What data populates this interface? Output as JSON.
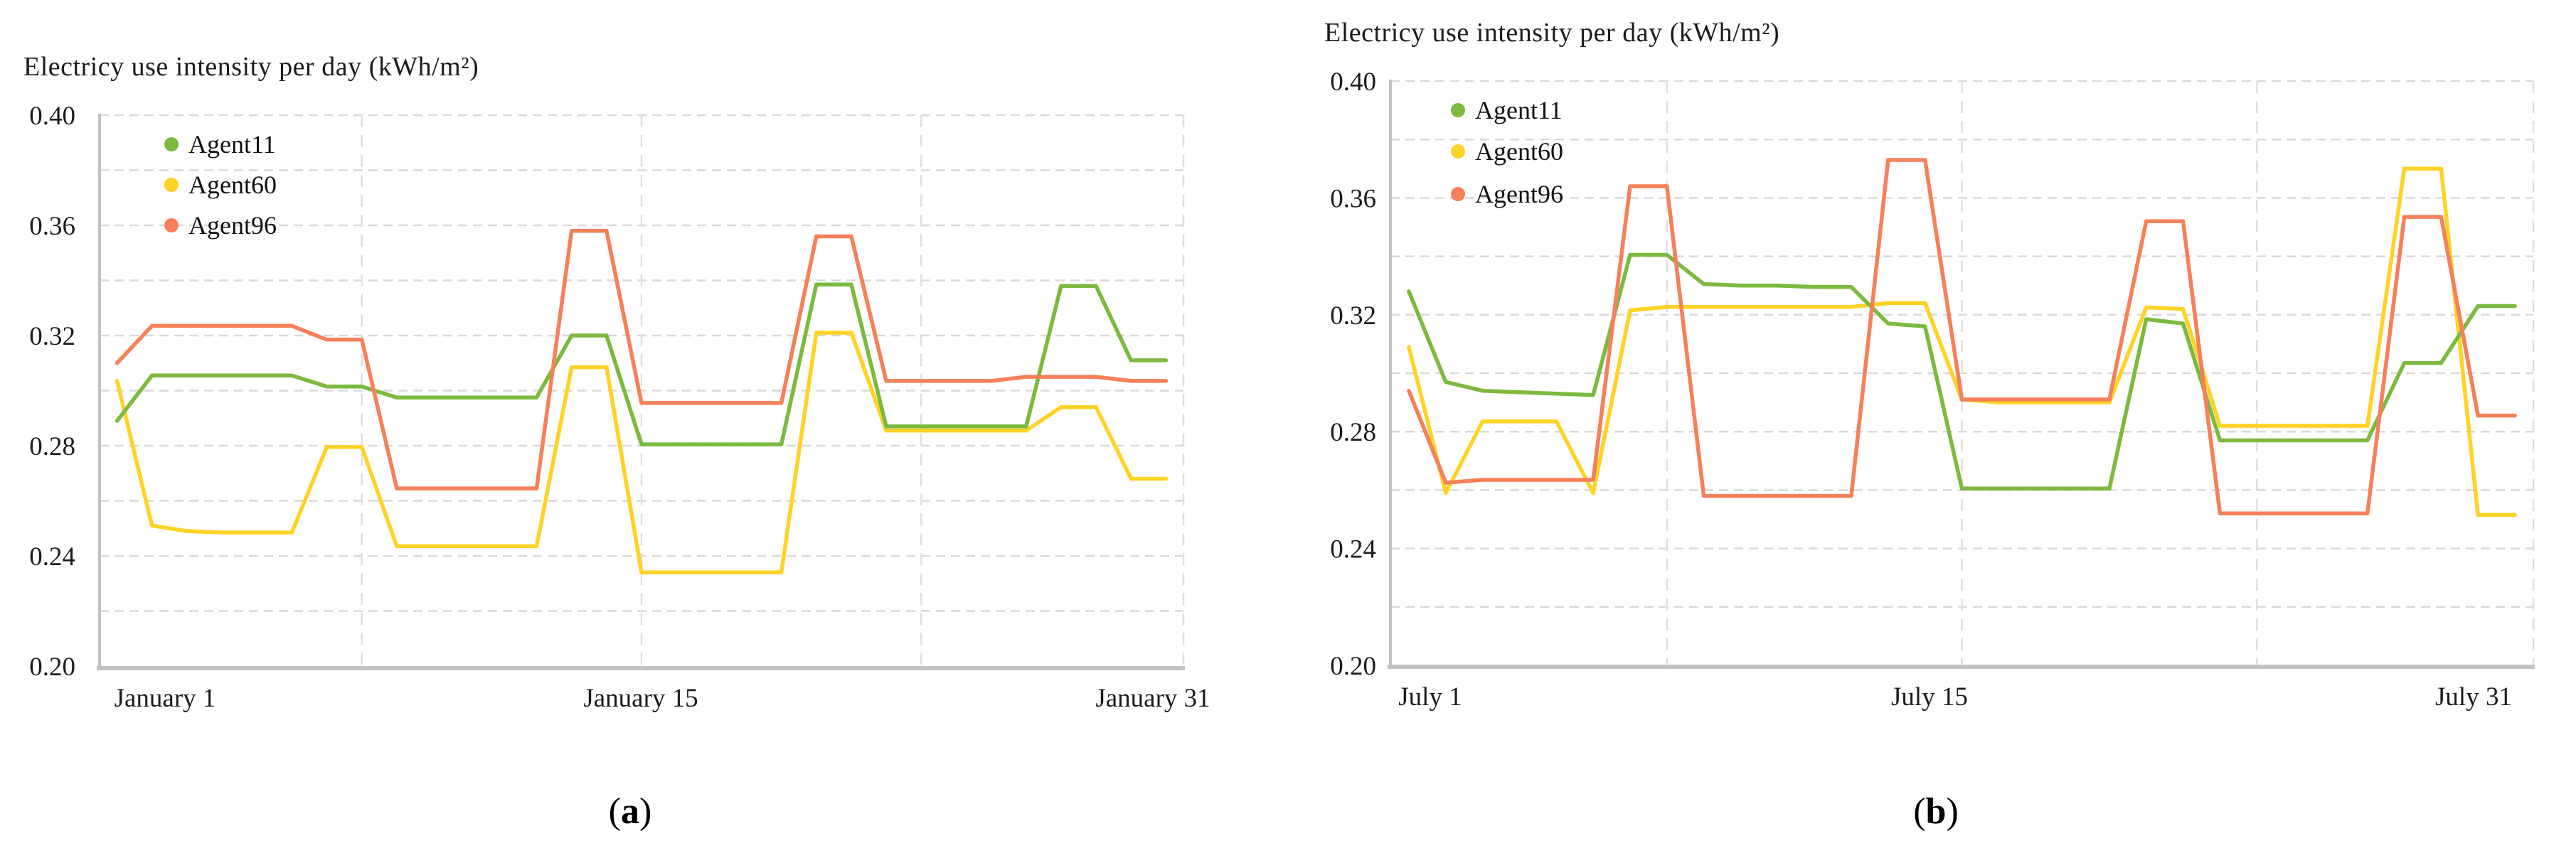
{
  "figure": {
    "background": "#ffffff"
  },
  "colors": {
    "green": "#7CBA3F",
    "yellow": "#FFD226",
    "orange": "#F5805A",
    "grid_h": "#D9D9D9",
    "grid_v": "#DFDFDF",
    "axis": "#C2C2C2",
    "text": "#1C1C1C"
  },
  "chart_data": [
    {
      "type": "line",
      "title": "Electricy use intensity per day (kWh/m²)",
      "caption": "(a)",
      "caption_parts": [
        "(",
        "a",
        ")"
      ],
      "x_axis": {
        "unit": "day of month",
        "n_days": 31,
        "labels": [
          "January 1",
          "January 15",
          "January 31"
        ],
        "gridline_days": [
          8,
          16,
          24
        ]
      },
      "y_axis": {
        "min": 0.2,
        "max": 0.4,
        "minor_step": 0.02,
        "tick_labels": [
          "0.40",
          "0.36",
          "0.32",
          "0.28",
          "0.24",
          "0.20"
        ],
        "tick_values": [
          0.4,
          0.36,
          0.32,
          0.28,
          0.24,
          0.2
        ]
      },
      "legend": [
        "Agent11",
        "Agent60",
        "Agent96"
      ],
      "grid": true,
      "legend_position": "top-left-inside",
      "series": [
        {
          "name": "Agent11",
          "color_key": "green",
          "values": [
            0.289,
            0.3055,
            0.3055,
            0.3055,
            0.3055,
            0.3055,
            0.3015,
            0.3015,
            0.2975,
            0.2975,
            0.2975,
            0.2975,
            0.2975,
            0.32,
            0.32,
            0.2805,
            0.2805,
            0.2805,
            0.2805,
            0.2805,
            0.3385,
            0.3385,
            0.287,
            0.287,
            0.287,
            0.287,
            0.287,
            0.338,
            0.338,
            0.311,
            0.311
          ]
        },
        {
          "name": "Agent60",
          "color_key": "yellow",
          "values": [
            0.3035,
            0.251,
            0.249,
            0.2485,
            0.2485,
            0.2485,
            0.2795,
            0.2795,
            0.2435,
            0.2435,
            0.2435,
            0.2435,
            0.2435,
            0.3085,
            0.3085,
            0.234,
            0.234,
            0.234,
            0.234,
            0.234,
            0.321,
            0.321,
            0.2855,
            0.2855,
            0.2855,
            0.2855,
            0.2855,
            0.294,
            0.294,
            0.268,
            0.268
          ]
        },
        {
          "name": "Agent96",
          "color_key": "orange",
          "values": [
            0.31,
            0.3235,
            0.3235,
            0.3235,
            0.3235,
            0.3235,
            0.3185,
            0.3185,
            0.2645,
            0.2645,
            0.2645,
            0.2645,
            0.2645,
            0.358,
            0.358,
            0.2955,
            0.2955,
            0.2955,
            0.2955,
            0.2955,
            0.356,
            0.356,
            0.3035,
            0.3035,
            0.3035,
            0.3035,
            0.305,
            0.305,
            0.305,
            0.3035,
            0.3035
          ]
        }
      ]
    },
    {
      "type": "line",
      "title": "Electricy use intensity per day (kWh/m²)",
      "caption": "(b)",
      "caption_parts": [
        "(",
        "b",
        ")"
      ],
      "x_axis": {
        "unit": "day of month",
        "n_days": 31,
        "labels": [
          "July 1",
          "July 15",
          "July 31"
        ],
        "gridline_days": [
          8,
          16,
          24
        ]
      },
      "y_axis": {
        "min": 0.2,
        "max": 0.4,
        "minor_step": 0.02,
        "tick_labels": [
          "0.40",
          "0.36",
          "0.32",
          "0.28",
          "0.24",
          "0.20"
        ],
        "tick_values": [
          0.4,
          0.36,
          0.32,
          0.28,
          0.24,
          0.2
        ]
      },
      "legend": [
        "Agent11",
        "Agent60",
        "Agent96"
      ],
      "grid": true,
      "legend_position": "top-left-inside",
      "series": [
        {
          "name": "Agent11",
          "color_key": "green",
          "values": [
            0.328,
            0.297,
            0.294,
            0.2935,
            0.293,
            0.2925,
            0.3405,
            0.3405,
            0.3305,
            0.33,
            0.33,
            0.3295,
            0.3295,
            0.317,
            0.316,
            0.2605,
            0.2605,
            0.2605,
            0.2605,
            0.2605,
            0.3185,
            0.317,
            0.277,
            0.277,
            0.277,
            0.277,
            0.277,
            0.3035,
            0.3035,
            0.323,
            0.323
          ]
        },
        {
          "name": "Agent60",
          "color_key": "yellow",
          "values": [
            0.309,
            0.259,
            0.2835,
            0.2835,
            0.2835,
            0.259,
            0.3215,
            0.3227,
            0.3227,
            0.3227,
            0.3227,
            0.3227,
            0.3227,
            0.324,
            0.324,
            0.291,
            0.29,
            0.29,
            0.29,
            0.29,
            0.3225,
            0.322,
            0.282,
            0.282,
            0.282,
            0.282,
            0.282,
            0.37,
            0.37,
            0.2515,
            0.2515
          ]
        },
        {
          "name": "Agent96",
          "color_key": "orange",
          "values": [
            0.294,
            0.2625,
            0.2635,
            0.2635,
            0.2635,
            0.2635,
            0.364,
            0.364,
            0.258,
            0.258,
            0.258,
            0.258,
            0.258,
            0.373,
            0.373,
            0.291,
            0.291,
            0.291,
            0.291,
            0.291,
            0.352,
            0.352,
            0.252,
            0.252,
            0.252,
            0.252,
            0.252,
            0.3535,
            0.3535,
            0.2855,
            0.2855
          ]
        }
      ]
    }
  ]
}
